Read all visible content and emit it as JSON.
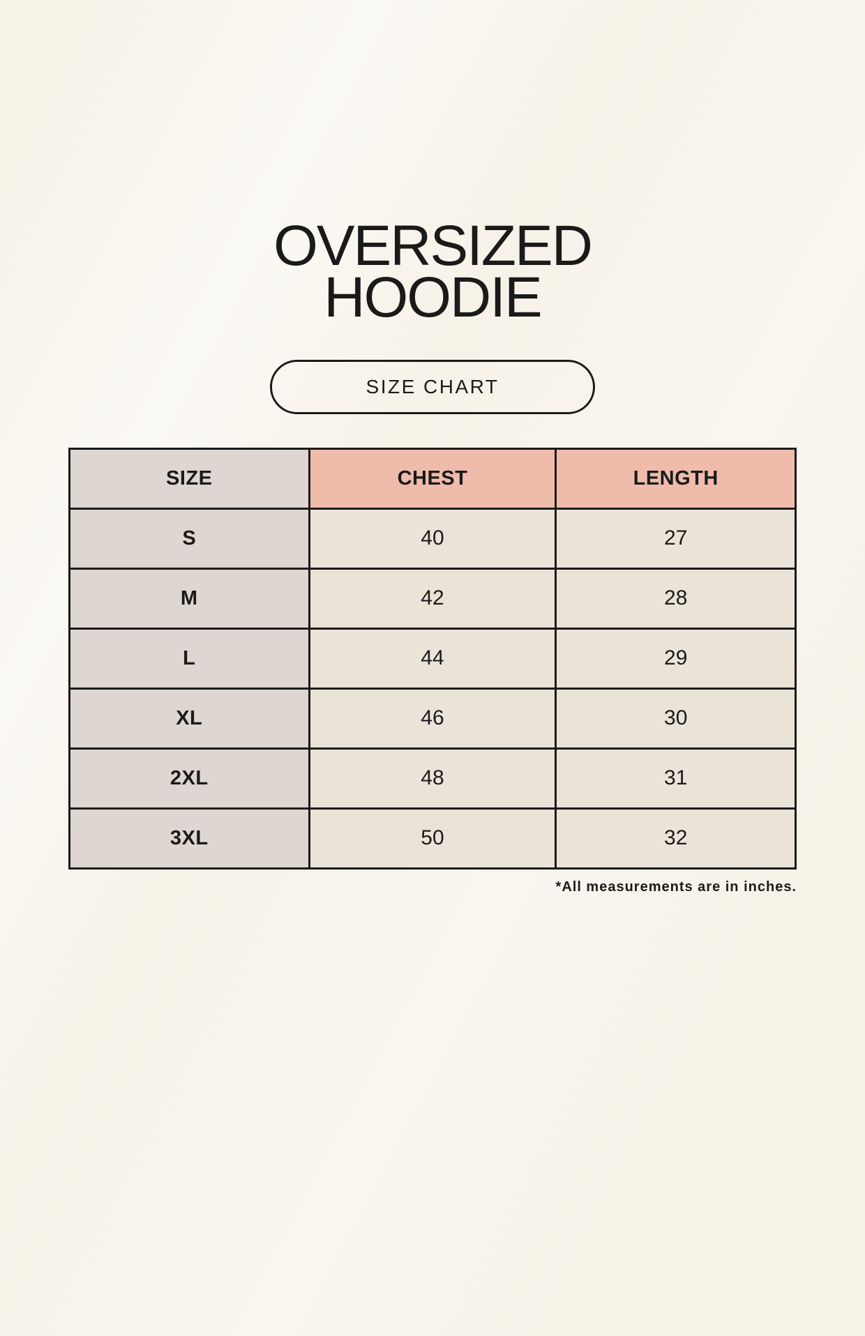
{
  "header": {
    "title_lines": "OVERSIZED\nHOODIE",
    "button_label": "SIZE CHART"
  },
  "table": {
    "columns": [
      "SIZE",
      "CHEST",
      "LENGTH"
    ],
    "rows": [
      [
        "S",
        "40",
        "27"
      ],
      [
        "M",
        "42",
        "28"
      ],
      [
        "L",
        "44",
        "29"
      ],
      [
        "XL",
        "46",
        "30"
      ],
      [
        "2XL",
        "48",
        "31"
      ],
      [
        "3XL",
        "50",
        "32"
      ]
    ]
  },
  "footnote": "*All measurements are in inches.",
  "colors": {
    "bg": "#f7f2e8",
    "cell_gray": "#ddd6d1",
    "header_pink": "#efbcab",
    "cell_cream": "#eae3d7",
    "ink": "#1a1a1a"
  },
  "chart_data": {
    "type": "table",
    "title": "OVERSIZED HOODIE SIZE CHART",
    "columns": [
      "SIZE",
      "CHEST",
      "LENGTH"
    ],
    "rows": [
      {
        "SIZE": "S",
        "CHEST": 40,
        "LENGTH": 27
      },
      {
        "SIZE": "M",
        "CHEST": 42,
        "LENGTH": 28
      },
      {
        "SIZE": "L",
        "CHEST": 44,
        "LENGTH": 29
      },
      {
        "SIZE": "XL",
        "CHEST": 46,
        "LENGTH": 30
      },
      {
        "SIZE": "2XL",
        "CHEST": 48,
        "LENGTH": 31
      },
      {
        "SIZE": "3XL",
        "CHEST": 50,
        "LENGTH": 32
      }
    ],
    "units": "inches",
    "note": "*All measurements are in inches."
  }
}
